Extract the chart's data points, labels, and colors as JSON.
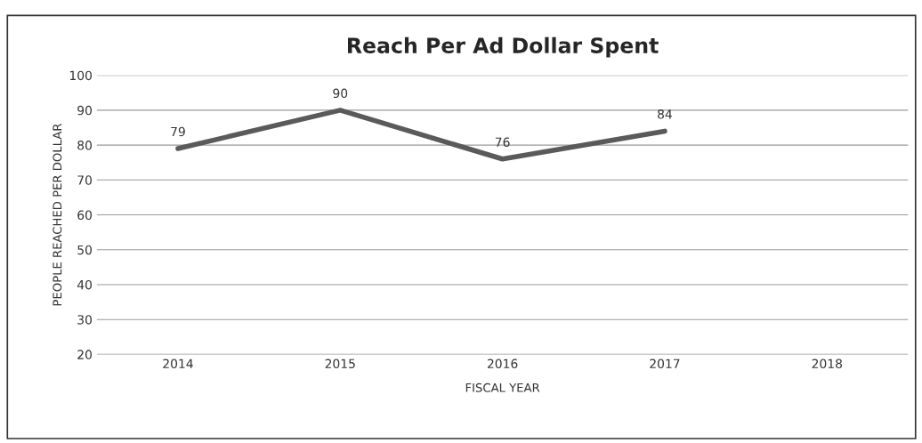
{
  "chart_data": {
    "type": "line",
    "title": "Reach Per Ad Dollar Spent",
    "xlabel": "FISCAL YEAR",
    "ylabel": "PEOPLE REACHED PER DOLLAR",
    "categories": [
      "2014",
      "2015",
      "2016",
      "2017",
      "2018"
    ],
    "series": [
      {
        "color": "#5a5a5a",
        "values": [
          79,
          90,
          76,
          84,
          null
        ]
      }
    ],
    "ylim": [
      20,
      100
    ],
    "yticks": [
      20,
      30,
      40,
      50,
      60,
      70,
      80,
      90,
      100
    ],
    "grid": "y",
    "data_labels": true,
    "marker": "none",
    "line_style": "solid"
  }
}
